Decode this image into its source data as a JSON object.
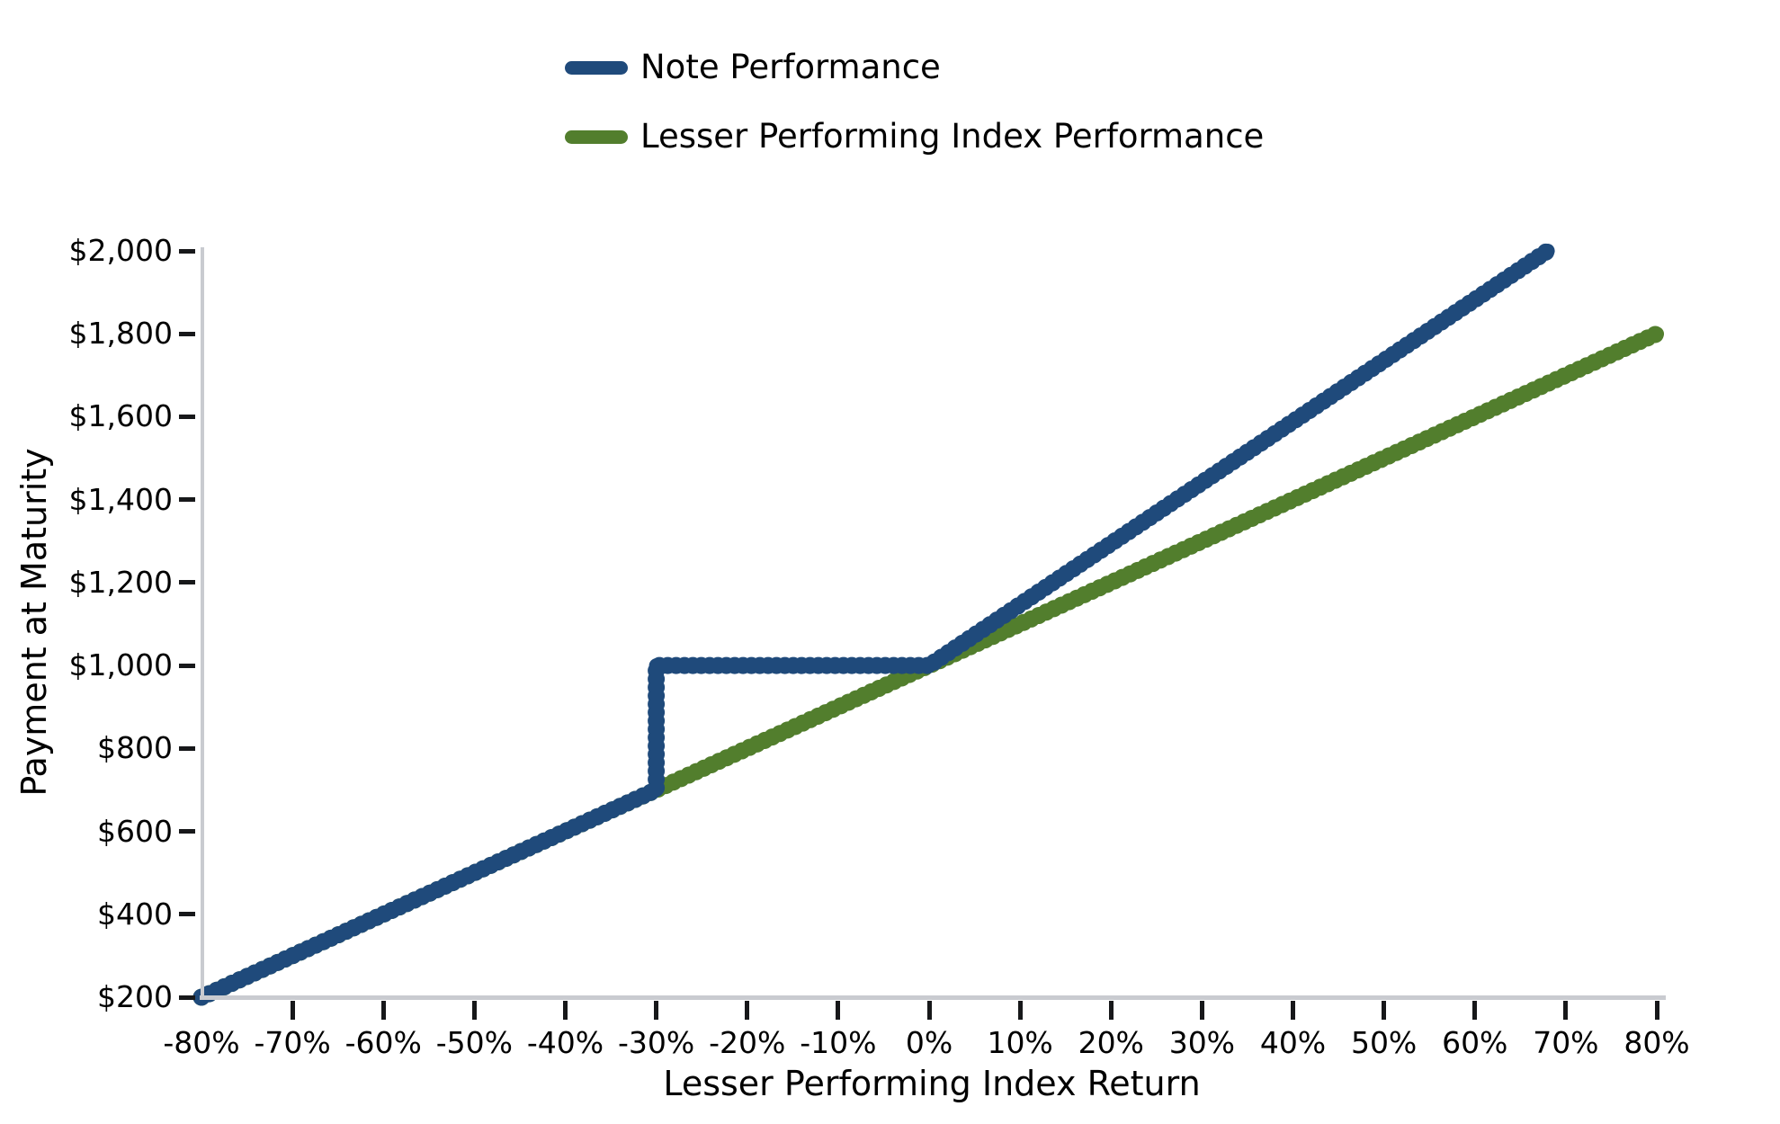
{
  "chart_data": {
    "type": "line",
    "title": "",
    "xlabel": "Lesser Performing Index Return",
    "ylabel": "Payment at Maturity",
    "xlim": [
      -0.8,
      0.8
    ],
    "ylim": [
      200,
      2000
    ],
    "grid": false,
    "legend_position": "top-center",
    "marker_style": "dense-round-markers",
    "x_ticks": [
      {
        "value": -0.8,
        "label": "-80%",
        "mark": false
      },
      {
        "value": -0.7,
        "label": "-70%",
        "mark": true
      },
      {
        "value": -0.6,
        "label": "-60%",
        "mark": true
      },
      {
        "value": -0.5,
        "label": "-50%",
        "mark": true
      },
      {
        "value": -0.4,
        "label": "-40%",
        "mark": true
      },
      {
        "value": -0.3,
        "label": "-30%",
        "mark": true
      },
      {
        "value": -0.2,
        "label": "-20%",
        "mark": true
      },
      {
        "value": -0.1,
        "label": "-10%",
        "mark": true
      },
      {
        "value": 0.0,
        "label": "0%",
        "mark": true
      },
      {
        "value": 0.1,
        "label": "10%",
        "mark": true
      },
      {
        "value": 0.2,
        "label": "20%",
        "mark": true
      },
      {
        "value": 0.3,
        "label": "30%",
        "mark": true
      },
      {
        "value": 0.4,
        "label": "40%",
        "mark": true
      },
      {
        "value": 0.5,
        "label": "50%",
        "mark": true
      },
      {
        "value": 0.6,
        "label": "60%",
        "mark": true
      },
      {
        "value": 0.7,
        "label": "70%",
        "mark": true
      },
      {
        "value": 0.8,
        "label": "80%",
        "mark": true
      }
    ],
    "y_ticks": [
      {
        "value": 200,
        "label": "$200"
      },
      {
        "value": 400,
        "label": "$400"
      },
      {
        "value": 600,
        "label": "$600"
      },
      {
        "value": 800,
        "label": "$800"
      },
      {
        "value": 1000,
        "label": "$1,000"
      },
      {
        "value": 1200,
        "label": "$1,200"
      },
      {
        "value": 1400,
        "label": "$1,400"
      },
      {
        "value": 1600,
        "label": "$1,600"
      },
      {
        "value": 1800,
        "label": "$1,800"
      },
      {
        "value": 2000,
        "label": "$2,000"
      }
    ],
    "series": [
      {
        "name": "Note Performance",
        "color": "#1F4A7B",
        "points": [
          [
            -0.8,
            200
          ],
          [
            -0.3,
            700
          ],
          [
            -0.3,
            1000
          ],
          [
            0.0,
            1000
          ],
          [
            0.68,
            2000
          ]
        ]
      },
      {
        "name": "Lesser Performing Index Performance",
        "color": "#527E2D",
        "points": [
          [
            -0.8,
            200
          ],
          [
            0.8,
            1800
          ]
        ]
      }
    ]
  },
  "legend": {
    "items": [
      {
        "label": "Note Performance",
        "color": "#1F4A7B"
      },
      {
        "label": "Lesser Performing Index Performance",
        "color": "#527E2D"
      }
    ]
  }
}
